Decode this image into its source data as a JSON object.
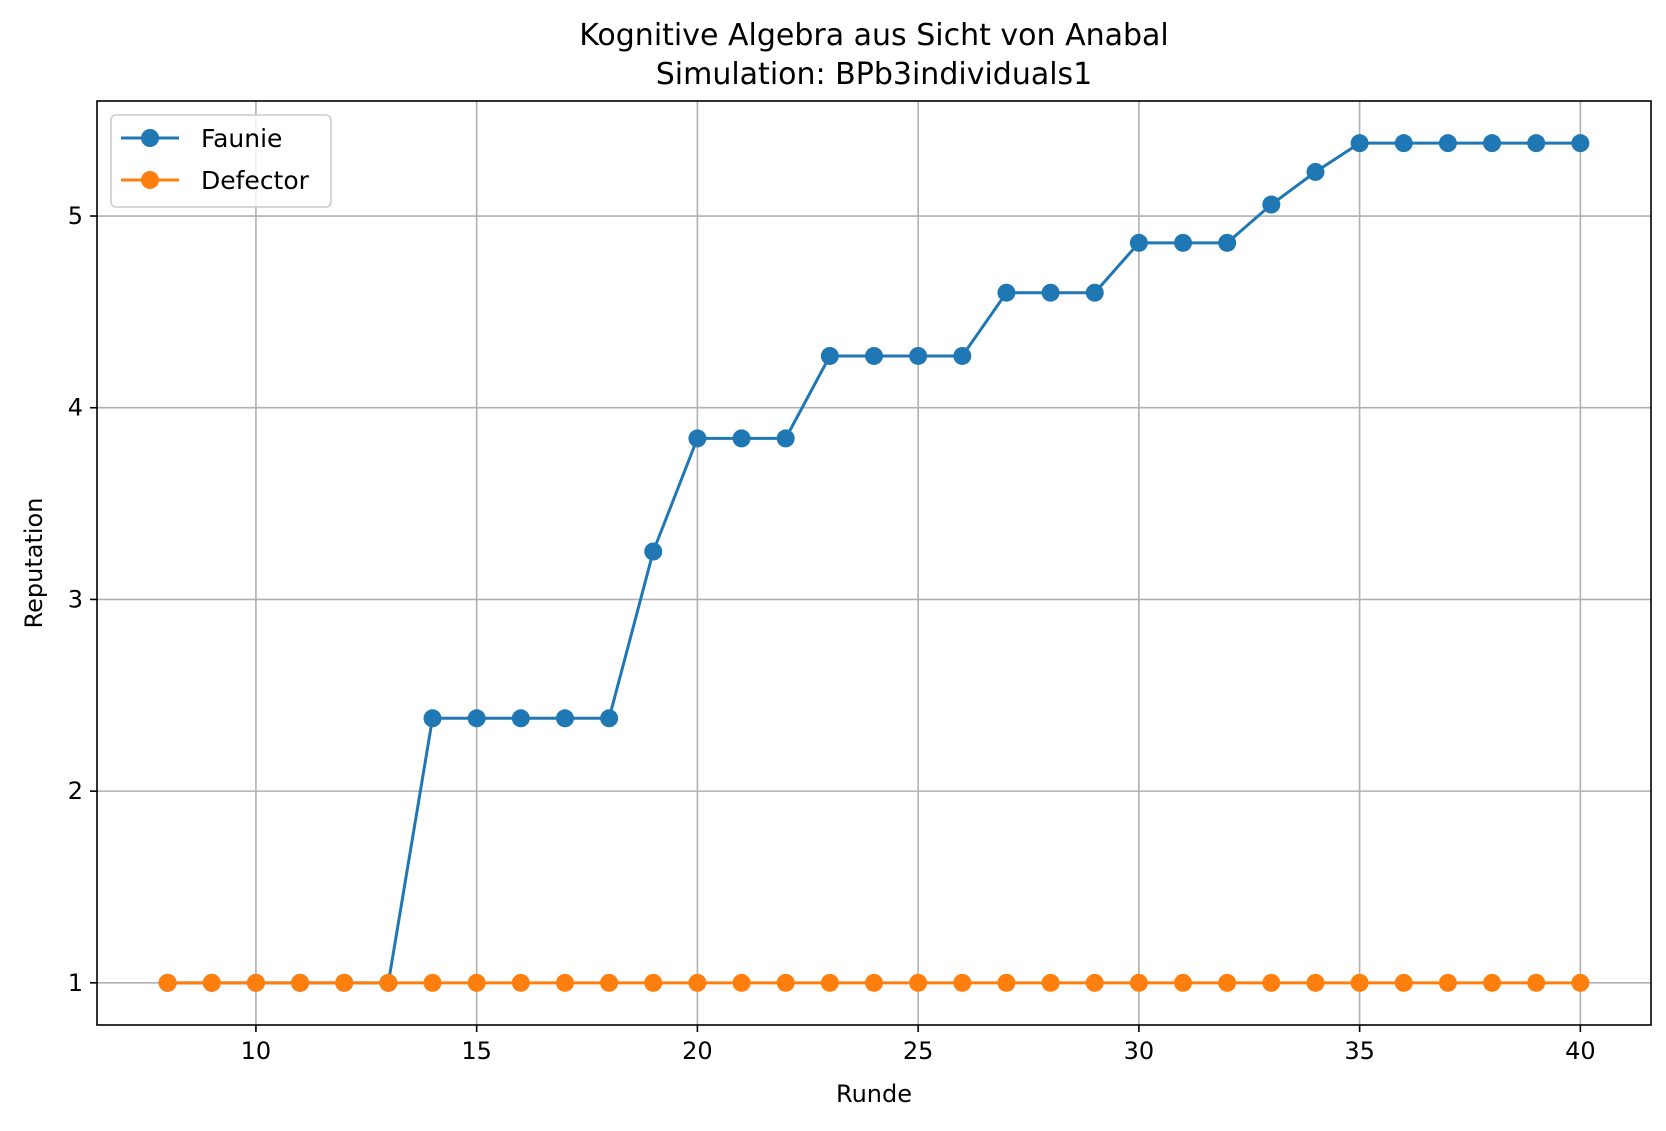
{
  "chart_data": {
    "type": "line",
    "title": "Kognitive Algebra aus Sicht von Anabal",
    "subtitle": "Simulation: BPb3individuals1",
    "xlabel": "Runde",
    "ylabel": "Reputation",
    "xlim": [
      6.4,
      41.6
    ],
    "ylim": [
      0.78,
      5.6
    ],
    "x_ticks": [
      10,
      15,
      20,
      25,
      30,
      35,
      40
    ],
    "y_ticks": [
      1,
      2,
      3,
      4,
      5
    ],
    "grid": true,
    "legend_position": "top-left",
    "series": [
      {
        "name": "Faunie",
        "color": "#1f77b4",
        "x": [
          8,
          9,
          10,
          11,
          12,
          13,
          14,
          15,
          16,
          17,
          18,
          19,
          20,
          21,
          22,
          23,
          24,
          25,
          26,
          27,
          28,
          29,
          30,
          31,
          32,
          33,
          34,
          35,
          36,
          37,
          38,
          39,
          40
        ],
        "values": [
          1,
          1,
          1,
          1,
          1,
          1,
          2.38,
          2.38,
          2.38,
          2.38,
          2.38,
          3.25,
          3.84,
          3.84,
          3.84,
          4.27,
          4.27,
          4.27,
          4.27,
          4.6,
          4.6,
          4.6,
          4.86,
          4.86,
          4.86,
          5.06,
          5.23,
          5.38,
          5.38,
          5.38,
          5.38,
          5.38,
          5.38
        ]
      },
      {
        "name": "Defector",
        "color": "#ff7f0e",
        "x": [
          8,
          9,
          10,
          11,
          12,
          13,
          14,
          15,
          16,
          17,
          18,
          19,
          20,
          21,
          22,
          23,
          24,
          25,
          26,
          27,
          28,
          29,
          30,
          31,
          32,
          33,
          34,
          35,
          36,
          37,
          38,
          39,
          40
        ],
        "values": [
          1,
          1,
          1,
          1,
          1,
          1,
          1,
          1,
          1,
          1,
          1,
          1,
          1,
          1,
          1,
          1,
          1,
          1,
          1,
          1,
          1,
          1,
          1,
          1,
          1,
          1,
          1,
          1,
          1,
          1,
          1,
          1,
          1
        ]
      }
    ]
  }
}
